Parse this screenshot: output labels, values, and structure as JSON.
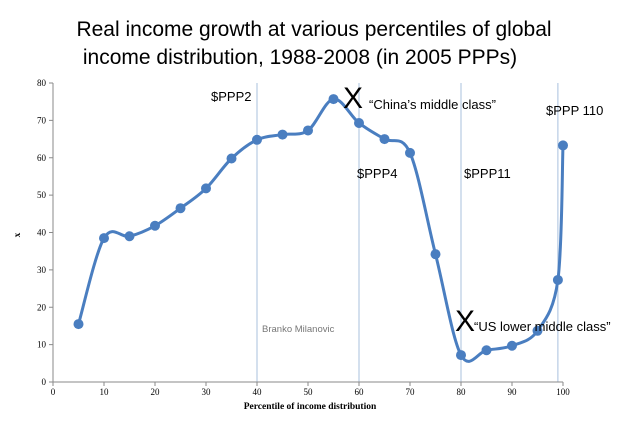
{
  "chart_data": {
    "type": "line",
    "title": [
      "Real income growth at various percentiles of global",
      "income distribution, 1988-2008 (in 2005 PPPs)"
    ],
    "xlabel": "Percentile of income distribution",
    "ylabel": "x",
    "xlim": [
      0,
      100
    ],
    "ylim": [
      0,
      80
    ],
    "x_ticks": [
      0,
      10,
      20,
      30,
      40,
      50,
      60,
      70,
      80,
      90,
      100
    ],
    "y_ticks": [
      0,
      10,
      20,
      30,
      40,
      50,
      60,
      70,
      80
    ],
    "series": [
      {
        "name": "Real income growth",
        "color": "#4a7ec0",
        "x": [
          5,
          10,
          15,
          20,
          25,
          30,
          35,
          40,
          45,
          50,
          55,
          60,
          65,
          70,
          75,
          80,
          85,
          90,
          95,
          99,
          100
        ],
        "y": [
          15.5,
          38.5,
          39,
          41.8,
          46.5,
          51.8,
          59.8,
          64.8,
          66.2,
          67.3,
          75.7,
          69.3,
          65,
          61.3,
          34.2,
          7.2,
          8.5,
          9.7,
          13.7,
          27.3,
          63.3
        ]
      }
    ],
    "reference_lines": [
      {
        "x": 40,
        "label": "$PPP2"
      },
      {
        "x": 60,
        "label": "$PPP4"
      },
      {
        "x": 80,
        "label": "$PPP11"
      },
      {
        "x": 99,
        "label": "$PPP 110"
      }
    ],
    "annotations": [
      {
        "marker": "X",
        "text": "“China’s middle class”",
        "x": 55,
        "y": 75.7
      },
      {
        "marker": "X",
        "text": "“US lower middle class”",
        "x": 80,
        "y": 7.2
      }
    ],
    "credit": "Branko Milanovic"
  }
}
